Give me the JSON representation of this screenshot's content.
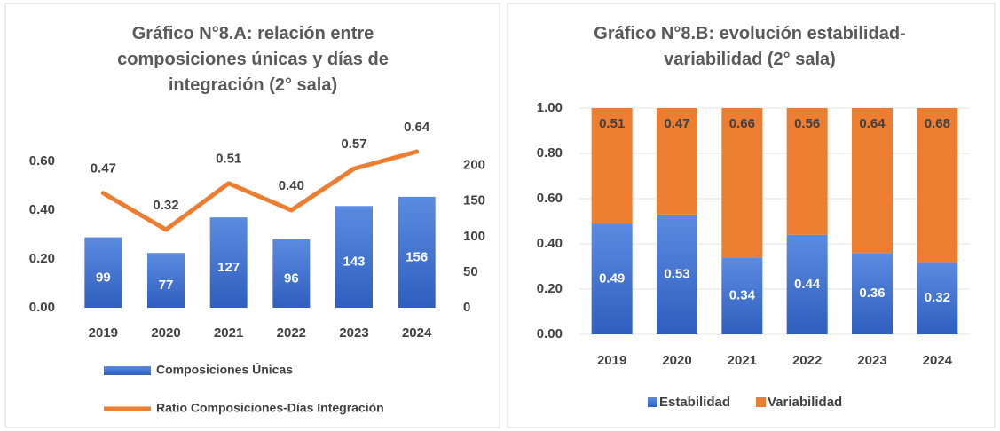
{
  "chart_data": [
    {
      "type": "combo",
      "title": "Gráfico N°8.A: relación entre composiciones únicas y días de integración (2° sala)",
      "categories": [
        "2019",
        "2020",
        "2021",
        "2022",
        "2023",
        "2024"
      ],
      "series": [
        {
          "name": "Composiciones Únicas",
          "type": "bar",
          "axis": "y2",
          "color": "#4472c4",
          "values": [
            99,
            77,
            127,
            96,
            143,
            156
          ]
        },
        {
          "name": "Ratio Composiciones-Días Integración",
          "type": "line",
          "axis": "y",
          "color": "#ed7d31",
          "values": [
            0.47,
            0.32,
            0.51,
            0.4,
            0.57,
            0.64
          ],
          "value_labels": [
            "0.47",
            "0.32",
            "0.51",
            "0.40",
            "0.57",
            "0.64"
          ]
        }
      ],
      "ylim": [
        0,
        0.7
      ],
      "yticks": [
        {
          "value": 0,
          "label": "0.00"
        },
        {
          "value": 0.2,
          "label": "0.20"
        },
        {
          "value": 0.4,
          "label": "0.40"
        },
        {
          "value": 0.6,
          "label": "0.60"
        }
      ],
      "y2lim": [
        0,
        240
      ],
      "y2ticks": [
        0,
        50,
        100,
        150,
        200
      ],
      "grid": false,
      "legend": "bottom"
    },
    {
      "type": "stacked_bar",
      "title": "Gráfico N°8.B: evolución estabilidad-variabilidad (2° sala)",
      "categories": [
        "2019",
        "2020",
        "2021",
        "2022",
        "2023",
        "2024"
      ],
      "series": [
        {
          "name": "Estabilidad",
          "color": "#4472c4",
          "values": [
            0.49,
            0.53,
            0.34,
            0.44,
            0.36,
            0.32
          ]
        },
        {
          "name": "Variabilidad",
          "color": "#ed7d31",
          "values": [
            0.51,
            0.47,
            0.66,
            0.56,
            0.64,
            0.68
          ]
        }
      ],
      "ylim": [
        0,
        1
      ],
      "yticks": [
        {
          "value": 0,
          "label": "0.00"
        },
        {
          "value": 0.2,
          "label": "0.20"
        },
        {
          "value": 0.4,
          "label": "0.40"
        },
        {
          "value": 0.6,
          "label": "0.60"
        },
        {
          "value": 0.8,
          "label": "0.80"
        },
        {
          "value": 1,
          "label": "1.00"
        }
      ],
      "grid": true,
      "legend": "bottom"
    }
  ]
}
